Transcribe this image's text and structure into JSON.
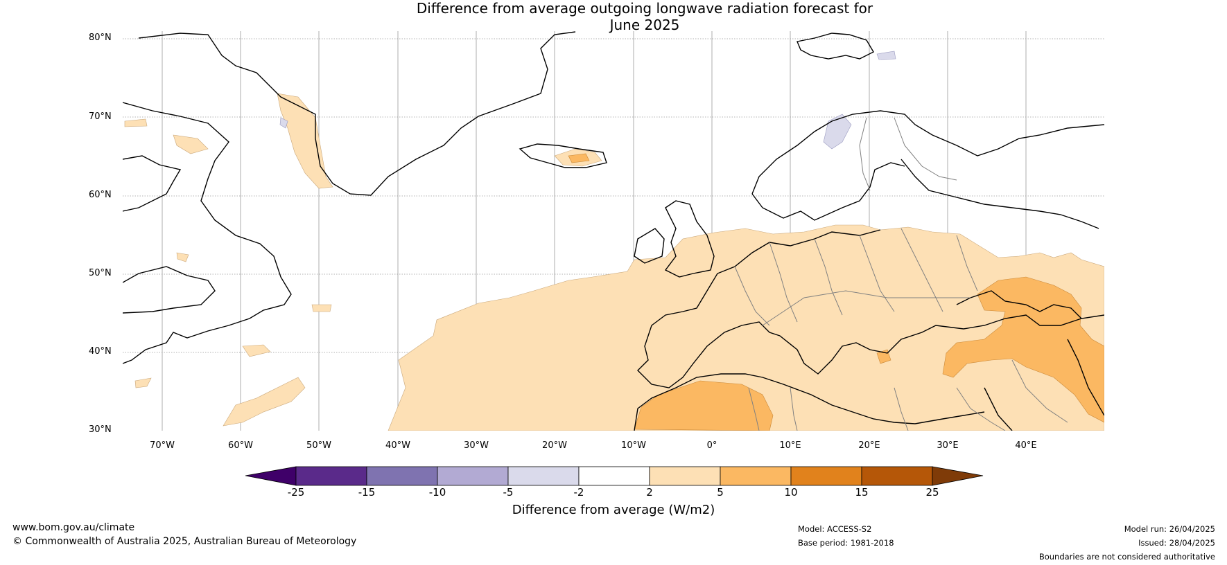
{
  "title_line1": "Difference from average outgoing longwave radiation forecast for",
  "title_line2": "June 2025",
  "lat_labels": [
    "80°N",
    "70°N",
    "60°N",
    "50°N",
    "40°N",
    "30°N"
  ],
  "lon_labels": [
    "70°W",
    "60°W",
    "50°W",
    "40°W",
    "30°W",
    "20°W",
    "10°W",
    "0°",
    "10°E",
    "20°E",
    "30°E",
    "40°E"
  ],
  "colorbar": {
    "title": "Difference from average (W/m2)",
    "ticks": [
      "-25",
      "-15",
      "-10",
      "-5",
      "-2",
      "2",
      "5",
      "10",
      "15",
      "25"
    ],
    "colors": {
      "lt_-25": "#3f0069",
      "-25_-15": "#5a2a8a",
      "-15_-10": "#7f73b0",
      "-10_-5": "#b2aad3",
      "-5_-2": "#dadaeb",
      "-2_2": "#ffffff",
      "2_5": "#fde0b5",
      "5_10": "#fbb862",
      "10_15": "#e1821c",
      "15_25": "#b55708",
      "gt_25": "#7f3b08"
    }
  },
  "footer": {
    "website": "www.bom.gov.au/climate",
    "copyright": "© Commonwealth of Australia 2025, Australian Bureau of Meteorology",
    "model": "Model: ACCESS-S2",
    "base_period": "Base period: 1981-2018",
    "model_run": "Model run: 26/04/2025",
    "issued": "Issued: 28/04/2025",
    "disclaimer": "Boundaries are not considered authoritative"
  }
}
